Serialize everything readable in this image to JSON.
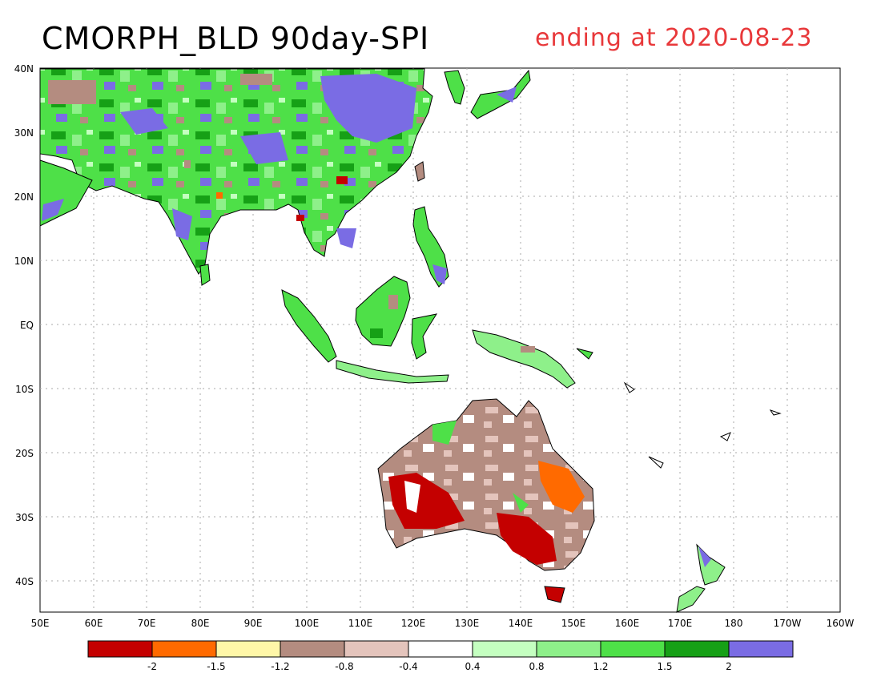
{
  "title": {
    "left": "CMORPH_BLD 90day-SPI",
    "right": "ending at 2020-08-23"
  },
  "axes": {
    "lat_labels": [
      "40N",
      "30N",
      "20N",
      "10N",
      "EQ",
      "10S",
      "20S",
      "30S",
      "40S"
    ],
    "lon_labels": [
      "50E",
      "60E",
      "70E",
      "80E",
      "90E",
      "100E",
      "110E",
      "120E",
      "130E",
      "140E",
      "150E",
      "160E",
      "170E",
      "180",
      "170W",
      "160W"
    ]
  },
  "legend": {
    "colors": [
      "#c40000",
      "#ff6a00",
      "#fff7a8",
      "#b48c80",
      "#e4c4bc",
      "#ffffff",
      "#c4ffc0",
      "#8ef08a",
      "#4ee048",
      "#16a016",
      "#7a6ce4"
    ],
    "labels": [
      "-2",
      "-1.5",
      "-1.2",
      "-0.8",
      "-0.4",
      "0.4",
      "0.8",
      "1.2",
      "1.5",
      "2"
    ]
  },
  "colors": {
    "title_right": "#e8383a",
    "grid": "#aaaaaa",
    "coast": "#000000"
  }
}
